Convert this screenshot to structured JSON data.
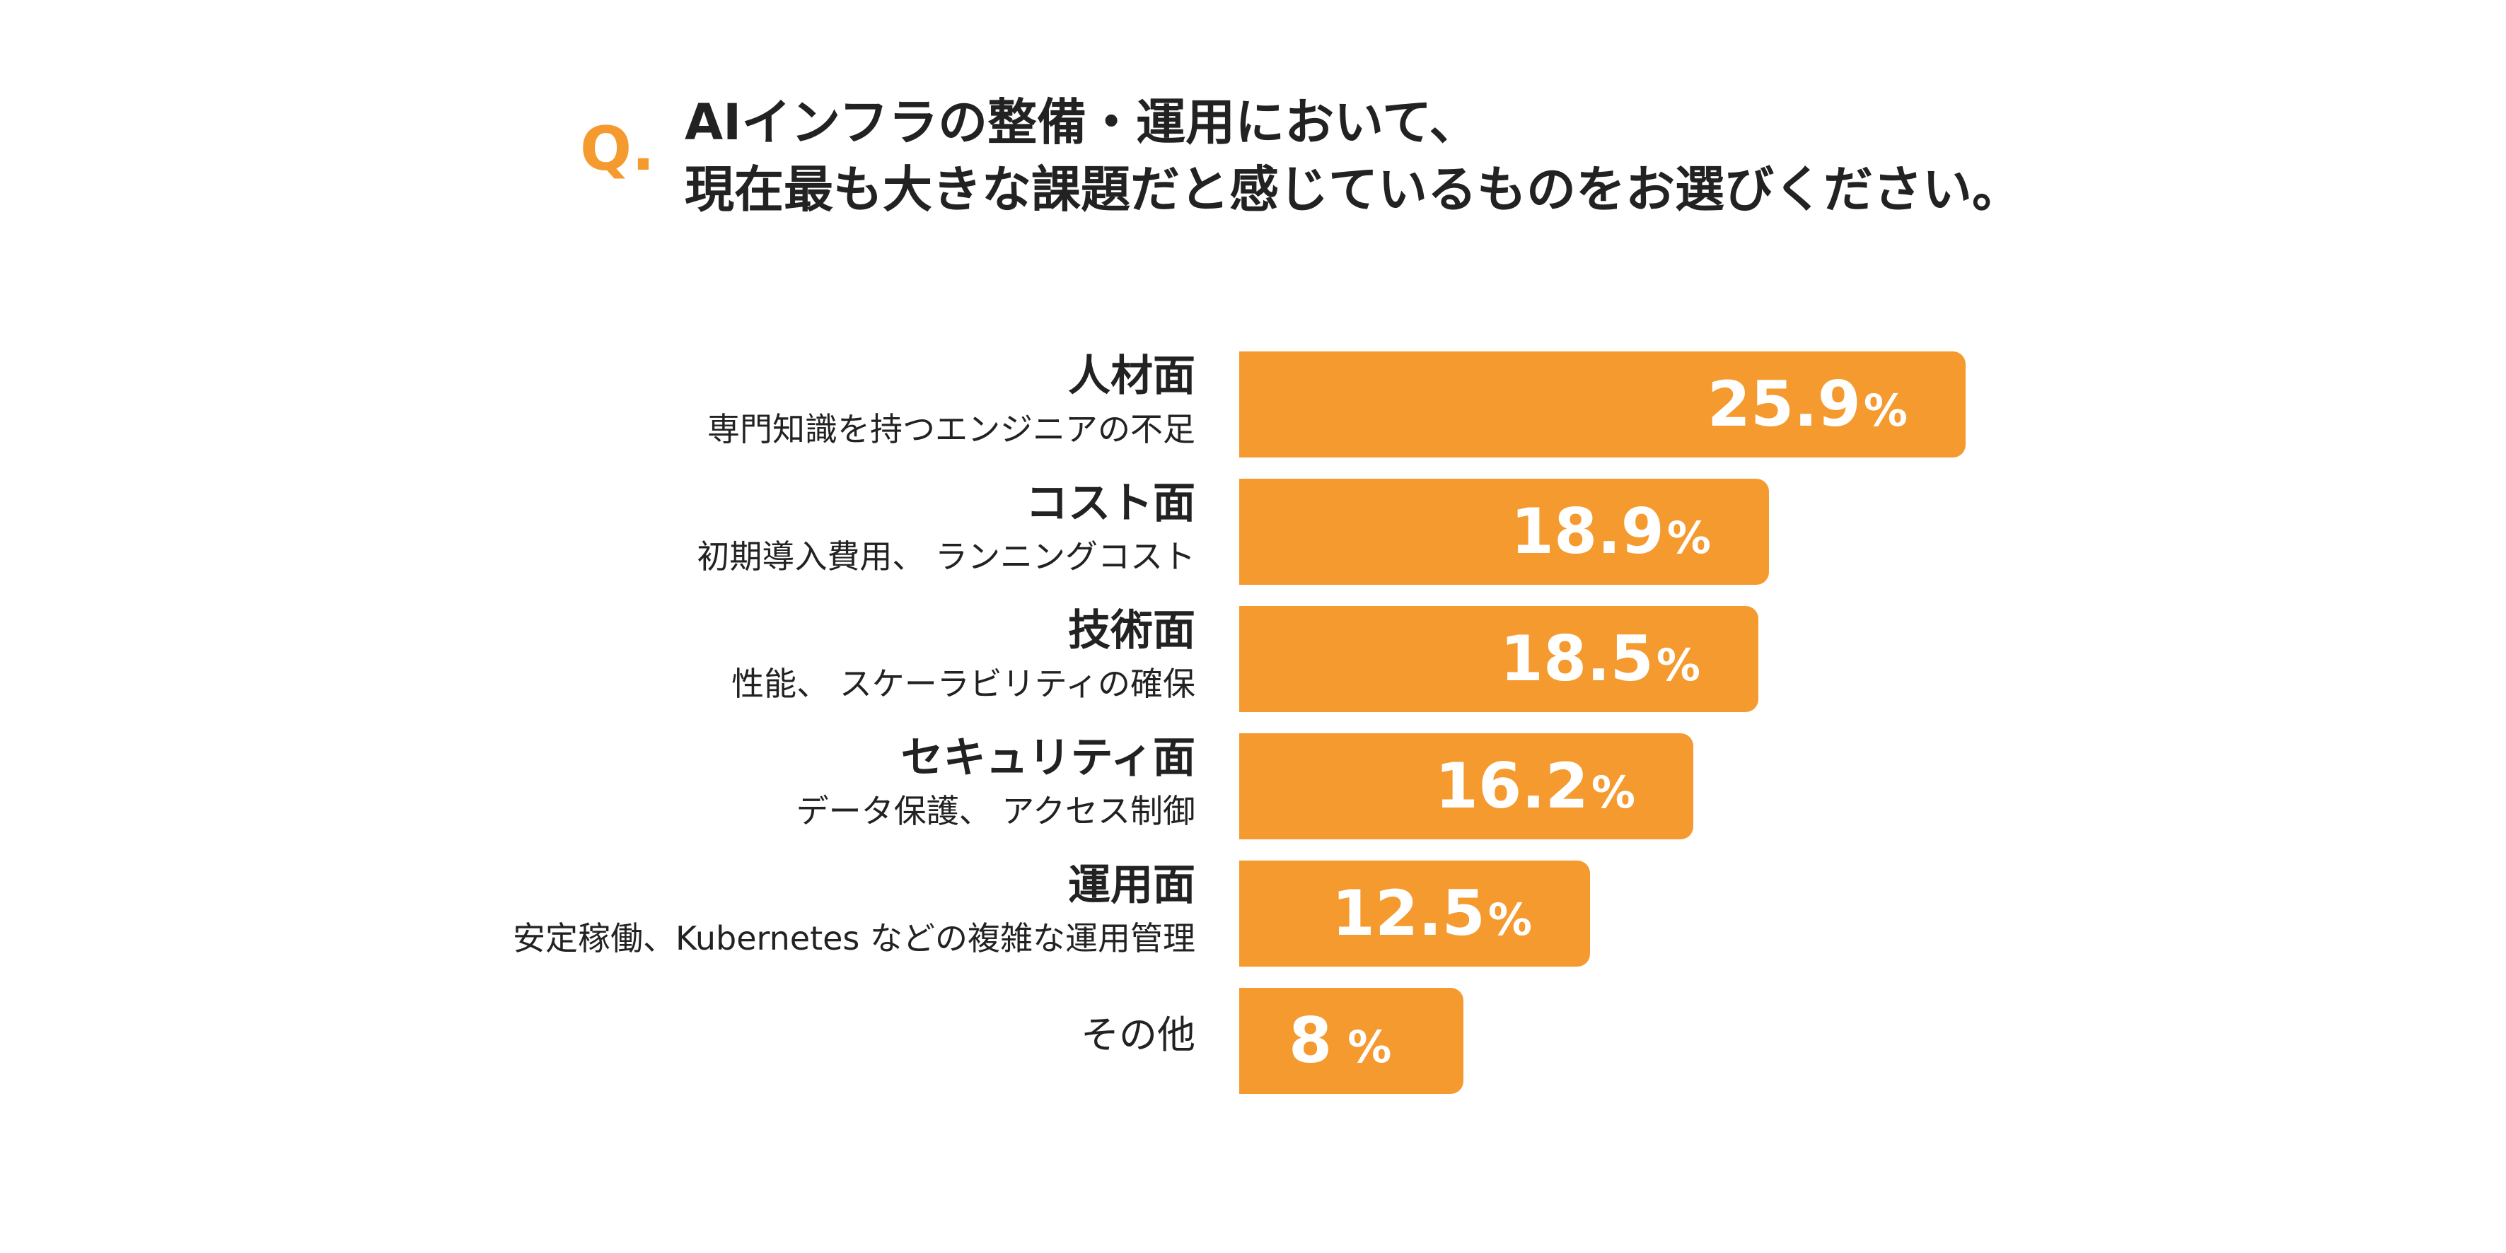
{
  "question": {
    "mark": "Q.",
    "line1": "AIインフラの整備・運用において、",
    "line2": "現在最も大きな課題だと感じているものをお選びください。"
  },
  "colors": {
    "accent": "#F59A2F",
    "bar": "#F59A2F",
    "text": "#222222",
    "bar_text": "#FFFFFF"
  },
  "chart_data": {
    "type": "bar",
    "orientation": "horizontal",
    "categories": [
      {
        "title": "人材面",
        "subtitle": "専門知識を持つエンジニアの不足"
      },
      {
        "title": "コスト面",
        "subtitle": "初期導入費用、 ランニングコスト"
      },
      {
        "title": "技術面",
        "subtitle": "性能、 スケーラビリティの確保"
      },
      {
        "title": "セキュリティ面",
        "subtitle": "データ保護、 アクセス制御"
      },
      {
        "title": "運用面",
        "subtitle": "安定稼働、Kubernetes などの複雑な運用管理"
      },
      {
        "title": "その他",
        "subtitle": ""
      }
    ],
    "values": [
      25.9,
      18.9,
      18.5,
      16.2,
      12.5,
      8
    ],
    "value_labels": [
      "25.9",
      "18.9",
      "18.5",
      "16.2",
      "12.5",
      "8"
    ],
    "unit": "%",
    "grid": false,
    "legend": "none"
  }
}
